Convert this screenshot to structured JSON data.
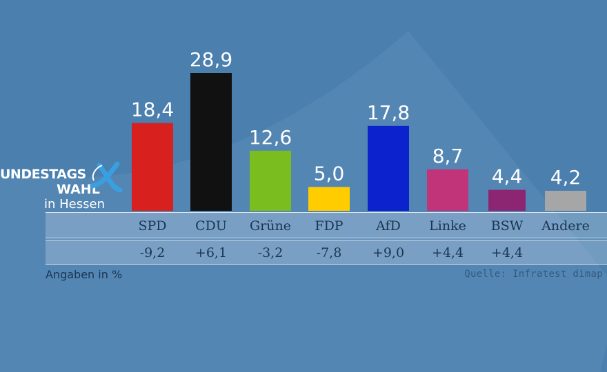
{
  "logo": {
    "line1": "UNDESTAGS",
    "line2": "WAHL",
    "line3": "in Hessen",
    "icon": "x-mark-icon"
  },
  "footnote": "Angaben in %",
  "source": "Quelle: Infratest dimap",
  "colors": {
    "background": "#4a7fae",
    "value_label": "#ffffff",
    "category_label": "#1a3552",
    "delta_label": "#1a3552"
  },
  "chart_data": {
    "type": "bar",
    "categories": [
      "SPD",
      "CDU",
      "Grüne",
      "FDP",
      "AfD",
      "Linke",
      "BSW",
      "Andere"
    ],
    "values": [
      18.4,
      28.9,
      12.6,
      5.0,
      17.8,
      8.7,
      4.4,
      4.2
    ],
    "value_labels": [
      "18,4",
      "28,9",
      "12,6",
      "5,0",
      "17,8",
      "8,7",
      "4,4",
      "4,2"
    ],
    "changes": [
      -9.2,
      6.1,
      -3.2,
      -7.8,
      9.0,
      4.4,
      4.4,
      null
    ],
    "change_labels": [
      "-9,2",
      "+6,1",
      "-3,2",
      "-7,8",
      "+9,0",
      "+4,4",
      "+4,4",
      ""
    ],
    "colors": [
      "#d8201e",
      "#111111",
      "#79bd1f",
      "#ffcc00",
      "#0b22cc",
      "#c2347a",
      "#8d2672",
      "#a6a6a6"
    ],
    "ylim": [
      0,
      30
    ],
    "grid": false,
    "legend": "none"
  }
}
